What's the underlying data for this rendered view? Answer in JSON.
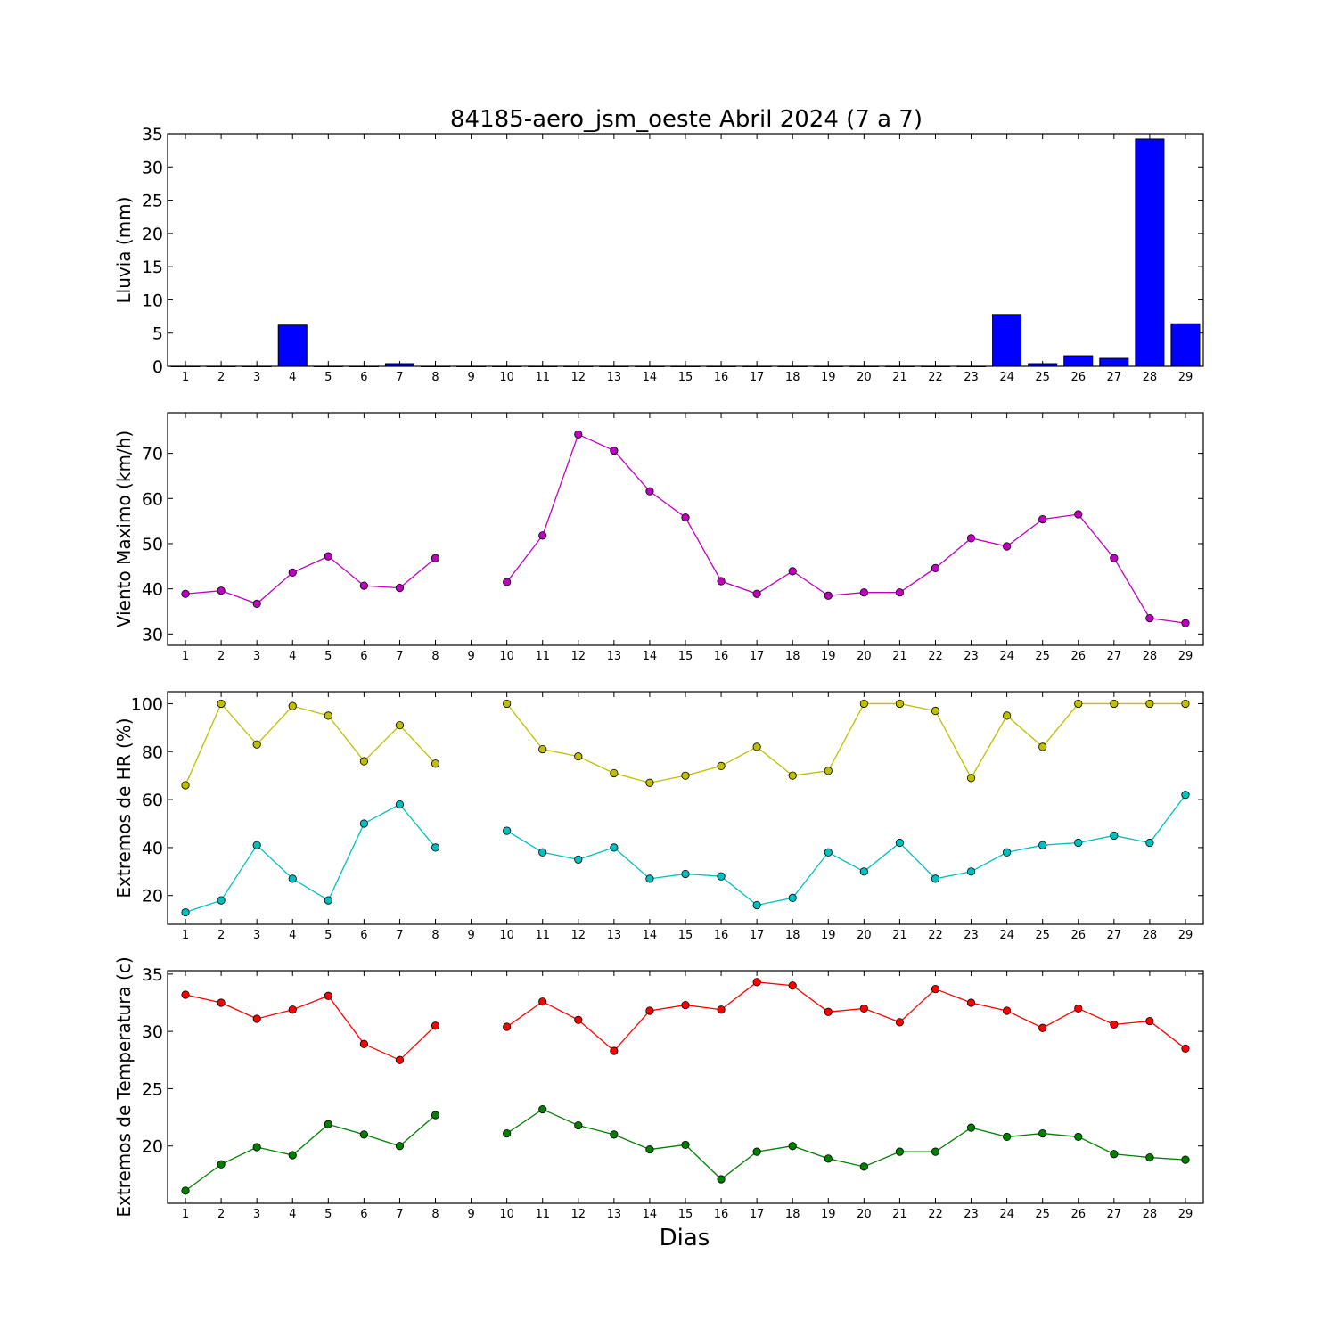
{
  "figure_title": "84185-aero_jsm_oeste Abril 2024  (7 a 7)",
  "xlabel": "Dias",
  "chart_data": [
    {
      "type": "bar",
      "name": "lluvia",
      "ylabel": "Lluvia (mm)",
      "x": [
        1,
        2,
        3,
        4,
        5,
        6,
        7,
        8,
        9,
        10,
        11,
        12,
        13,
        14,
        15,
        16,
        17,
        18,
        19,
        20,
        21,
        22,
        23,
        24,
        25,
        26,
        27,
        28,
        29
      ],
      "values": [
        0,
        0,
        0,
        6.2,
        0,
        0,
        0.4,
        0,
        0,
        0,
        0,
        0,
        0,
        0,
        0,
        0,
        0,
        0,
        0,
        0,
        0,
        0,
        0,
        7.8,
        0.4,
        1.6,
        1.2,
        34.2,
        6.4
      ],
      "ylim": [
        0,
        35
      ],
      "yticks": [
        0,
        5,
        10,
        15,
        20,
        25,
        30,
        35
      ],
      "color": "#0000ff"
    },
    {
      "type": "line",
      "name": "viento",
      "ylabel": "Viento Maximo (km/h)",
      "x": [
        1,
        2,
        3,
        4,
        5,
        6,
        7,
        8,
        9,
        10,
        11,
        12,
        13,
        14,
        15,
        16,
        17,
        18,
        19,
        20,
        21,
        22,
        23,
        24,
        25,
        26,
        27,
        28,
        29
      ],
      "series": [
        {
          "color": "#bf00bf",
          "values": [
            38.9,
            39.6,
            36.7,
            43.6,
            47.2,
            40.7,
            40.2,
            46.8,
            null,
            41.5,
            51.8,
            74.2,
            70.6,
            61.6,
            55.8,
            41.7,
            38.9,
            43.9,
            38.5,
            39.2,
            39.2,
            44.6,
            51.2,
            49.4,
            55.4,
            56.5,
            46.8,
            33.5,
            32.4
          ]
        }
      ],
      "ylim": [
        27.5,
        79
      ],
      "yticks": [
        30,
        40,
        50,
        60,
        70
      ]
    },
    {
      "type": "line",
      "name": "humedad",
      "ylabel": "Extremos de HR (%)",
      "x": [
        1,
        2,
        3,
        4,
        5,
        6,
        7,
        8,
        9,
        10,
        11,
        12,
        13,
        14,
        15,
        16,
        17,
        18,
        19,
        20,
        21,
        22,
        23,
        24,
        25,
        26,
        27,
        28,
        29
      ],
      "series": [
        {
          "color": "#bfbf00",
          "values": [
            66,
            100,
            83,
            99,
            95,
            76,
            91,
            75,
            null,
            100,
            81,
            78,
            71,
            67,
            70,
            74,
            82,
            70,
            72,
            100,
            100,
            97,
            69,
            95,
            82,
            100,
            100,
            100,
            100
          ]
        },
        {
          "color": "#00bfbf",
          "values": [
            13,
            18,
            41,
            27,
            18,
            50,
            58,
            40,
            null,
            47,
            38,
            35,
            40,
            27,
            29,
            28,
            16,
            19,
            38,
            30,
            42,
            27,
            30,
            38,
            41,
            42,
            45,
            42,
            62
          ]
        }
      ],
      "ylim": [
        8,
        105
      ],
      "yticks": [
        20,
        40,
        60,
        80,
        100
      ]
    },
    {
      "type": "line",
      "name": "temperatura",
      "ylabel": "Extremos de Temperatura (c)",
      "x": [
        1,
        2,
        3,
        4,
        5,
        6,
        7,
        8,
        9,
        10,
        11,
        12,
        13,
        14,
        15,
        16,
        17,
        18,
        19,
        20,
        21,
        22,
        23,
        24,
        25,
        26,
        27,
        28,
        29
      ],
      "series": [
        {
          "color": "#ff0000",
          "values": [
            33.2,
            32.5,
            31.1,
            31.9,
            33.1,
            28.9,
            27.5,
            30.5,
            null,
            30.4,
            32.6,
            31.0,
            28.3,
            31.8,
            32.3,
            31.9,
            34.3,
            34.0,
            31.7,
            32.0,
            30.8,
            33.7,
            32.5,
            31.8,
            30.3,
            32.0,
            30.6,
            30.9,
            28.5
          ]
        },
        {
          "color": "#007f00",
          "values": [
            16.1,
            18.4,
            19.9,
            19.2,
            21.9,
            21.0,
            20.0,
            22.7,
            null,
            21.1,
            23.2,
            21.8,
            21.0,
            19.7,
            20.1,
            17.1,
            19.5,
            20.0,
            18.9,
            18.2,
            19.5,
            19.5,
            21.6,
            20.8,
            21.1,
            20.8,
            19.3,
            19.0,
            18.8
          ]
        }
      ],
      "ylim": [
        15,
        35.3
      ],
      "yticks": [
        20,
        25,
        30,
        35
      ]
    }
  ]
}
